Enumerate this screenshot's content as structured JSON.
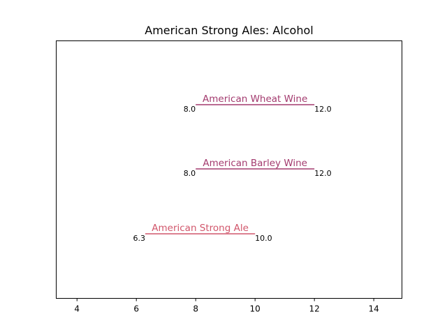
{
  "chart_data": {
    "type": "range",
    "title": "American Strong Ales: Alcohol",
    "xlabel": "",
    "ylabel": "",
    "xlim": [
      3.3,
      14.95
    ],
    "xticks": [
      "4",
      "6",
      "8",
      "10",
      "12",
      "14"
    ],
    "grid": false,
    "series": [
      {
        "name": "American Strong Ale",
        "low": 6.3,
        "high": 10.0,
        "low_label": "6.3",
        "high_label": "10.0",
        "color": "#d1566b"
      },
      {
        "name": "American Barley Wine",
        "low": 8.0,
        "high": 12.0,
        "low_label": "8.0",
        "high_label": "12.0",
        "color": "#a33a6e"
      },
      {
        "name": "American Wheat Wine",
        "low": 8.0,
        "high": 12.0,
        "low_label": "8.0",
        "high_label": "12.0",
        "color": "#a33a6e"
      }
    ]
  }
}
